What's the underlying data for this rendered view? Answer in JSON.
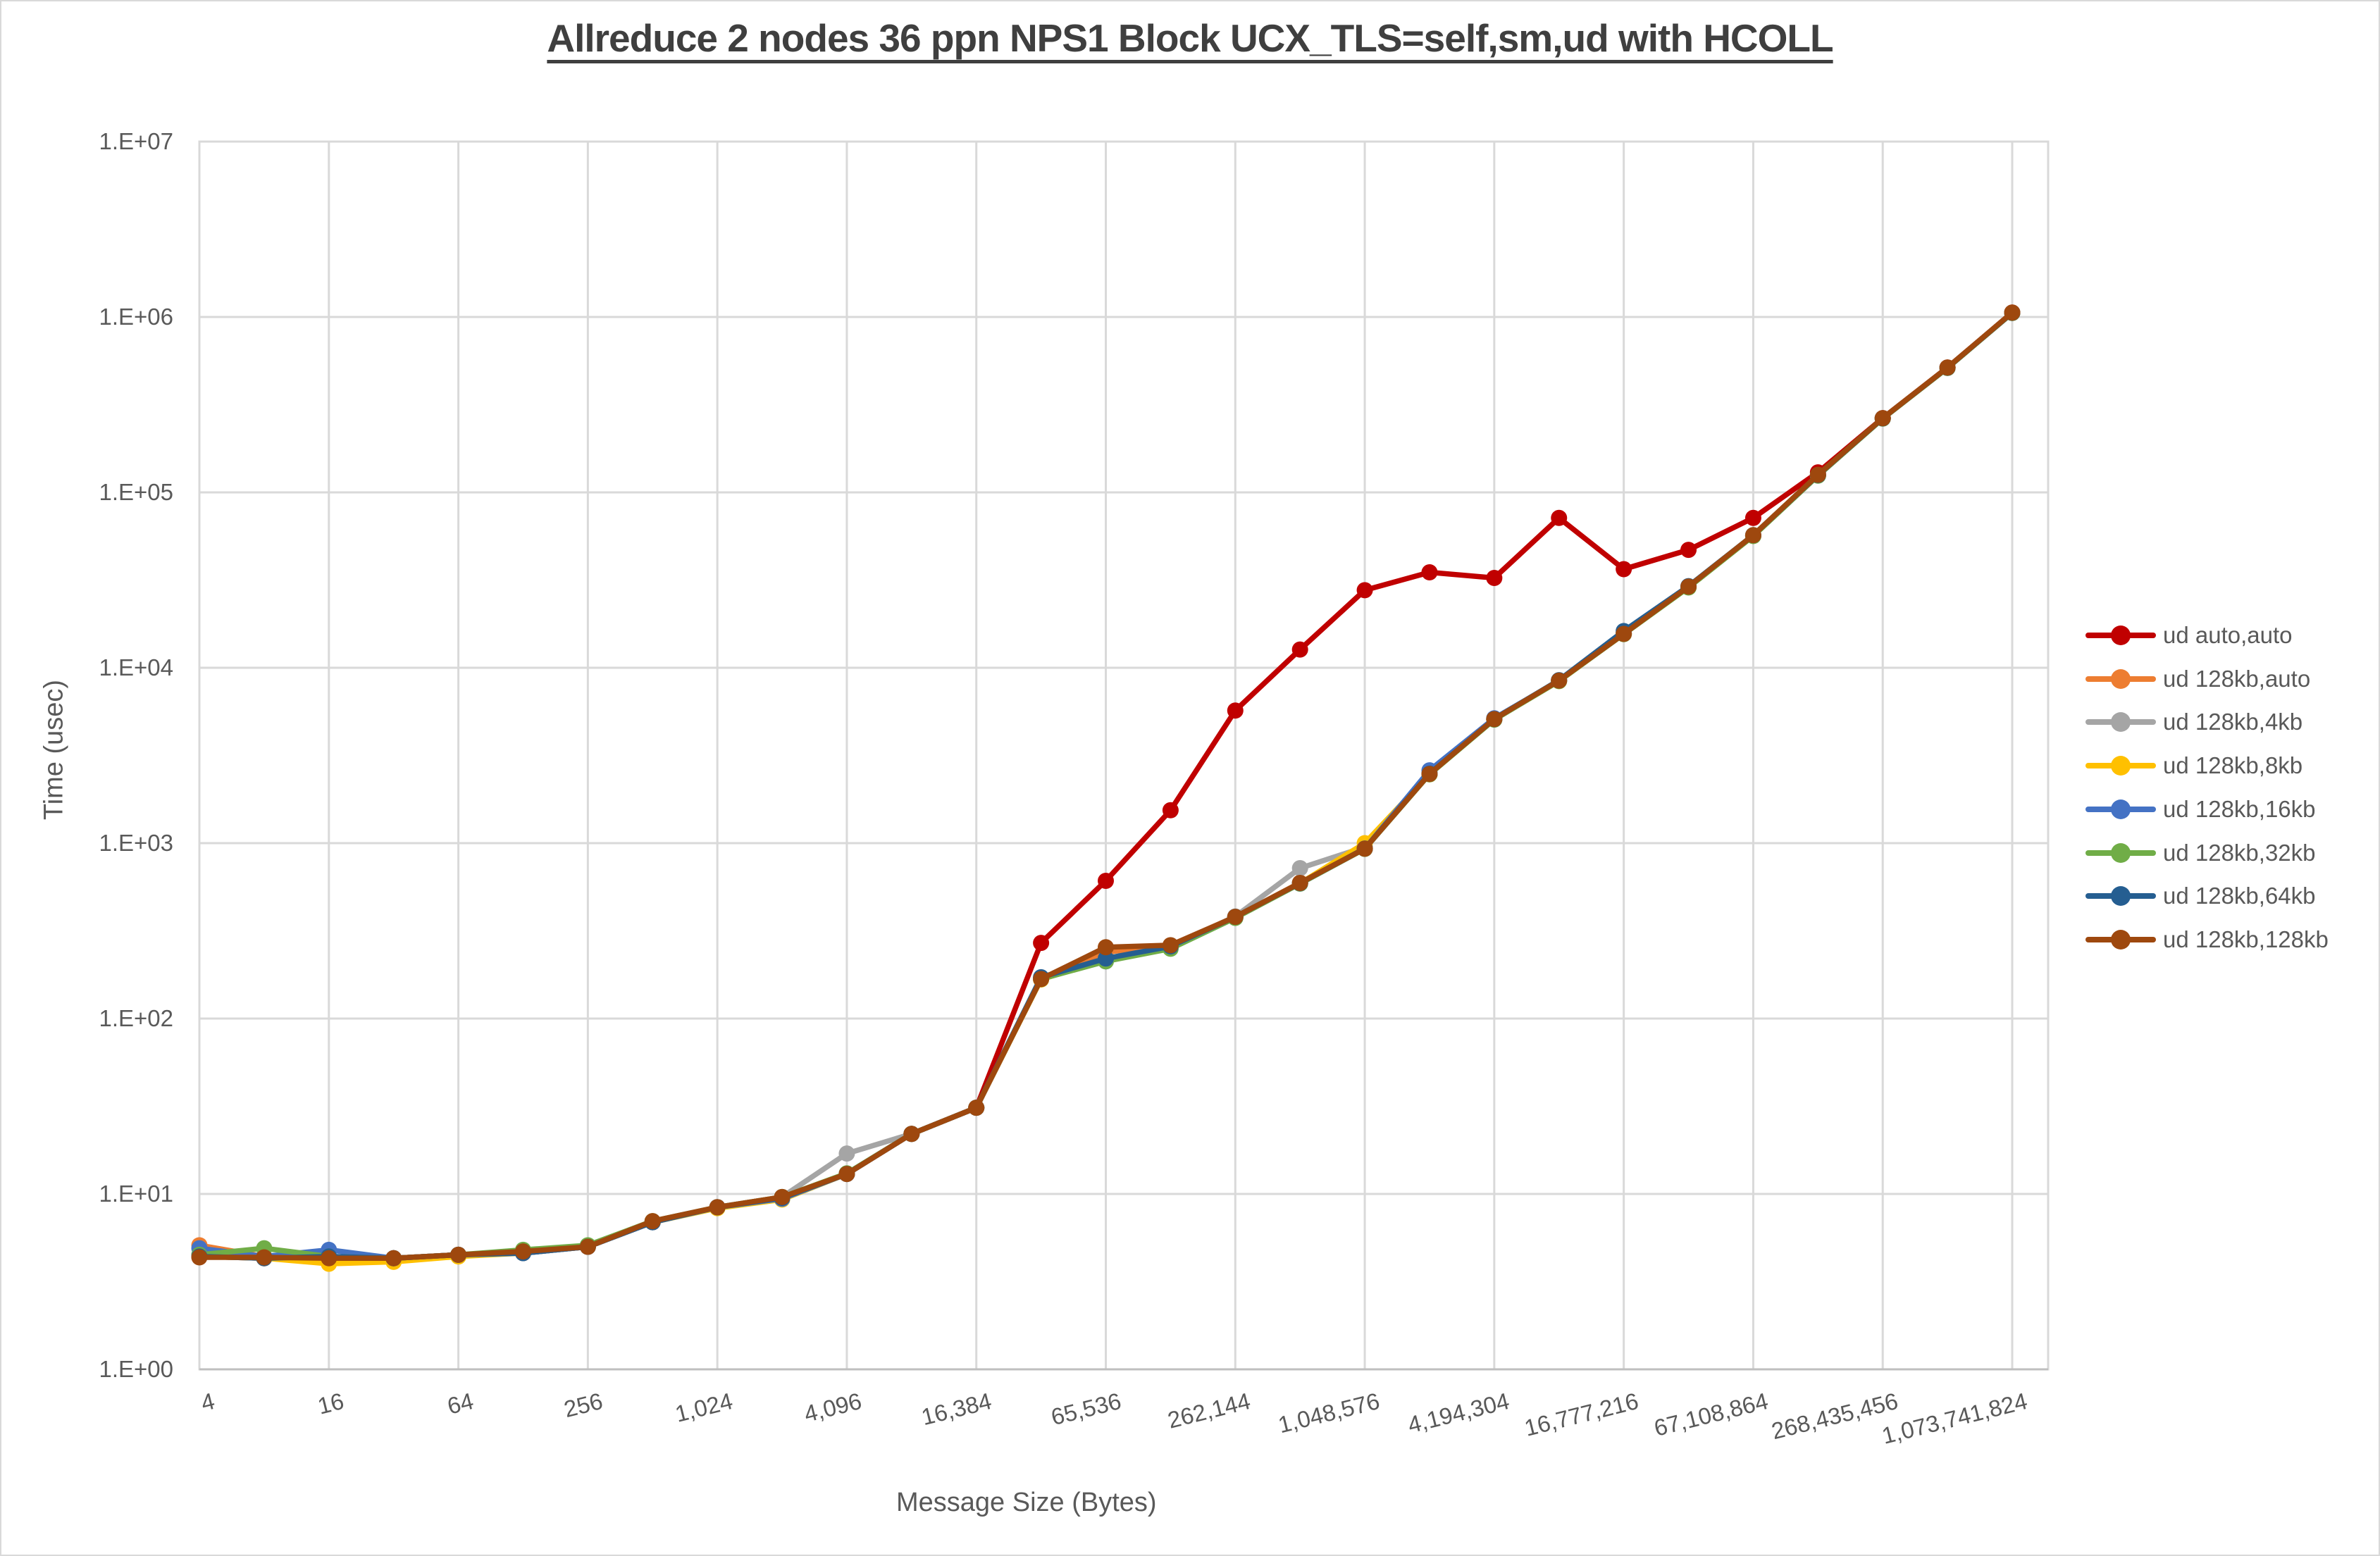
{
  "title": {
    "text": "Allreduce 2 nodes 36 ppn NPS1 Block UCX_TLS=self,sm,ud with HCOLL"
  },
  "axes": {
    "y": {
      "title": "Time (usec)",
      "tick_labels": [
        "1.E+00",
        "1.E+01",
        "1.E+02",
        "1.E+03",
        "1.E+04",
        "1.E+05",
        "1.E+06",
        "1.E+07"
      ]
    },
    "x": {
      "title": "Message Size (Bytes)",
      "tick_labels": [
        "4",
        "16",
        "64",
        "256",
        "1,024",
        "4,096",
        "16,384",
        "65,536",
        "262,144",
        "1,048,576",
        "4,194,304",
        "16,777,216",
        "67,108,864",
        "268,435,456",
        "1,073,741,824"
      ]
    }
  },
  "colors": {
    "gridline": "#d9d9d9",
    "plot_border": "#d9d9d9",
    "axis_line": "#bfbfbf",
    "tick_text": "#595959",
    "title_text": "#3f3f3f",
    "background": "#ffffff"
  },
  "chart_data": {
    "type": "line",
    "title": "Allreduce 2 nodes 36 ppn NPS1 Block UCX_TLS=self,sm,ud with HCOLL",
    "xlabel": "Message Size (Bytes)",
    "ylabel": "Time (usec)",
    "x_scale": "log2",
    "y_scale": "log10",
    "ylim": [
      1,
      10000000
    ],
    "grid": true,
    "legend_position": "right",
    "x": [
      4,
      8,
      16,
      32,
      64,
      128,
      256,
      512,
      1024,
      2048,
      4096,
      8192,
      16384,
      32768,
      65536,
      131072,
      262144,
      524288,
      1048576,
      2097152,
      4194304,
      8388608,
      16777216,
      33554432,
      67108864,
      134217728,
      268435456,
      536870912,
      1073741824
    ],
    "x_axis_tick_values": [
      4,
      16,
      64,
      256,
      1024,
      4096,
      16384,
      65536,
      262144,
      1048576,
      4194304,
      16777216,
      67108864,
      268435456,
      1073741824
    ],
    "series": [
      {
        "name": "ud auto,auto",
        "color": "#C00000",
        "values": [
          4.4,
          4.3,
          4.3,
          4.3,
          4.5,
          4.6,
          5.0,
          6.9,
          8.4,
          9.5,
          13.0,
          22,
          31,
          270,
          610,
          1540,
          5700,
          12700,
          27700,
          35000,
          32500,
          71500,
          36500,
          47000,
          71500,
          130000,
          265000,
          515000,
          1060000
        ]
      },
      {
        "name": "ud 128kb,auto",
        "color": "#ED7D31",
        "values": [
          5.1,
          4.4,
          4.3,
          4.3,
          4.5,
          4.6,
          5.0,
          6.9,
          8.4,
          9.6,
          13.0,
          22,
          31,
          168,
          240,
          258,
          380,
          595,
          935,
          2480,
          5080,
          8450,
          15600,
          28800,
          56500,
          125000,
          264000,
          513000,
          1055000
        ]
      },
      {
        "name": "ud 128kb,4kb",
        "color": "#A5A5A5",
        "values": [
          4.5,
          4.4,
          4.3,
          4.2,
          4.5,
          4.6,
          5.0,
          6.9,
          8.4,
          9.6,
          17.0,
          22,
          31,
          168,
          215,
          256,
          382,
          720,
          950,
          2480,
          5080,
          8450,
          15700,
          28800,
          56500,
          125000,
          264000,
          513000,
          1055000
        ]
      },
      {
        "name": "ud 128kb,8kb",
        "color": "#FFC000",
        "values": [
          4.4,
          4.3,
          4.0,
          4.1,
          4.4,
          4.6,
          5.0,
          6.9,
          8.3,
          9.3,
          13.0,
          22,
          31,
          167,
          218,
          255,
          378,
          590,
          1000,
          2470,
          5080,
          8400,
          15600,
          28800,
          56500,
          125000,
          264000,
          513000,
          1055000
        ]
      },
      {
        "name": "ud 128kb,16kb",
        "color": "#4472C4",
        "values": [
          4.9,
          4.4,
          4.8,
          4.3,
          4.5,
          4.6,
          5.0,
          6.9,
          8.4,
          9.4,
          13.0,
          22,
          31,
          170,
          212,
          255,
          378,
          588,
          930,
          2600,
          5150,
          8450,
          15650,
          29000,
          56800,
          125500,
          264500,
          513500,
          1056000
        ]
      },
      {
        "name": "ud 128kb,32kb",
        "color": "#70AD47",
        "values": [
          4.5,
          4.9,
          4.4,
          4.3,
          4.5,
          4.8,
          5.1,
          7.0,
          8.4,
          9.6,
          13.1,
          22,
          31,
          168,
          212,
          250,
          375,
          588,
          928,
          2470,
          5060,
          8400,
          15550,
          28700,
          56400,
          124500,
          263500,
          512000,
          1054000
        ]
      },
      {
        "name": "ud 128kb,64kb",
        "color": "#255E91",
        "values": [
          4.4,
          4.3,
          4.4,
          4.3,
          4.5,
          4.6,
          5.0,
          6.9,
          8.4,
          9.5,
          13.0,
          22,
          31,
          172,
          220,
          258,
          380,
          592,
          932,
          2490,
          5100,
          8500,
          16200,
          29200,
          57000,
          125500,
          264500,
          514000,
          1057000
        ]
      },
      {
        "name": "ud 128kb,128kb",
        "color": "#9E480E",
        "values": [
          4.35,
          4.35,
          4.3,
          4.3,
          4.5,
          4.7,
          5.0,
          7.0,
          8.4,
          9.6,
          13.0,
          22,
          31,
          168,
          255,
          262,
          380,
          593,
          930,
          2480,
          5100,
          8450,
          15600,
          29000,
          57000,
          126000,
          265000,
          515000,
          1060000
        ]
      }
    ]
  }
}
